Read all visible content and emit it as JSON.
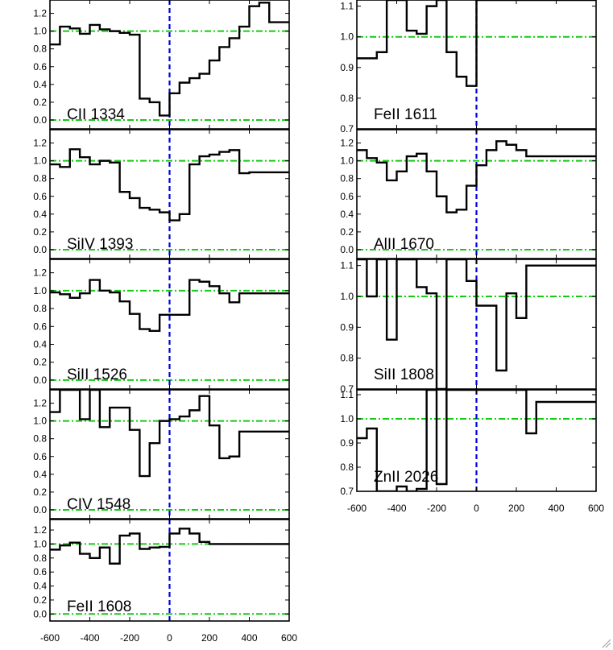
{
  "chart_data": {
    "type": "line",
    "style": "histogram step",
    "colors": {
      "spectrum": "#000000",
      "continuum": "#11cc11",
      "zero_velocity": "#0000dd",
      "frame": "#000000"
    },
    "x_axis": {
      "ticks": [
        "-600",
        "-400",
        "-200",
        "0",
        "200",
        "400",
        "600"
      ],
      "tick_values": [
        -600,
        -400,
        -200,
        0,
        200,
        400,
        600
      ],
      "xlim": [
        -600,
        600
      ]
    },
    "bin_edges": [
      -600,
      -550,
      -500,
      -450,
      -400,
      -350,
      -300,
      -250,
      -200,
      -150,
      -100,
      -50,
      0,
      50,
      100,
      150,
      200,
      250,
      300,
      350,
      400,
      450,
      500,
      550,
      600
    ],
    "panels": [
      {
        "label": "CII 1334",
        "ylim": [
          -0.1,
          1.35
        ],
        "yticks": [
          "0.0",
          "0.2",
          "0.4",
          "0.6",
          "0.8",
          "1.0",
          "1.2"
        ],
        "ytick_values": [
          0,
          0.2,
          0.4,
          0.6,
          0.8,
          1.0,
          1.2
        ],
        "continuum": [
          1.0,
          0.0
        ],
        "values": [
          0.85,
          1.05,
          1.03,
          0.97,
          1.07,
          1.02,
          1.0,
          0.98,
          0.96,
          0.24,
          0.2,
          0.05,
          0.3,
          0.42,
          0.47,
          0.52,
          0.67,
          0.82,
          0.92,
          1.05,
          1.28,
          1.32,
          1.1,
          1.1
        ]
      },
      {
        "label": "SiIV 1393",
        "ylim": [
          -0.1,
          1.35
        ],
        "yticks": [
          "0.0",
          "0.2",
          "0.4",
          "0.6",
          "0.8",
          "1.0",
          "1.2"
        ],
        "ytick_values": [
          0,
          0.2,
          0.4,
          0.6,
          0.8,
          1.0,
          1.2
        ],
        "continuum": [
          1.0,
          0.0
        ],
        "values": [
          0.96,
          0.93,
          1.13,
          1.04,
          0.96,
          1.0,
          0.98,
          0.65,
          0.58,
          0.47,
          0.45,
          0.42,
          0.33,
          0.4,
          0.96,
          1.05,
          1.07,
          1.1,
          1.12,
          0.86,
          0.87,
          0.87,
          0.87,
          0.87
        ]
      },
      {
        "label": "SiII 1526",
        "ylim": [
          -0.1,
          1.35
        ],
        "yticks": [
          "0.0",
          "0.2",
          "0.4",
          "0.6",
          "0.8",
          "1.0",
          "1.2"
        ],
        "ytick_values": [
          0,
          0.2,
          0.4,
          0.6,
          0.8,
          1.0,
          1.2
        ],
        "continuum": [
          1.0,
          0.0
        ],
        "values": [
          0.98,
          0.96,
          0.92,
          0.97,
          1.12,
          1.0,
          0.98,
          0.88,
          0.74,
          0.57,
          0.55,
          0.73,
          0.73,
          0.73,
          1.12,
          1.1,
          1.05,
          0.97,
          0.87,
          0.97,
          0.97,
          0.97,
          0.97,
          0.97
        ]
      },
      {
        "label": "CIV 1548",
        "ylim": [
          -0.1,
          1.35
        ],
        "yticks": [
          "0.0",
          "0.2",
          "0.4",
          "0.6",
          "0.8",
          "1.0",
          "1.2"
        ],
        "ytick_values": [
          0,
          0.2,
          0.4,
          0.6,
          0.8,
          1.0,
          1.2
        ],
        "continuum": [
          1.0,
          0.0
        ],
        "values": [
          1.1,
          1.35,
          1.35,
          1.02,
          1.35,
          0.93,
          1.15,
          1.15,
          0.9,
          0.38,
          0.75,
          1.0,
          1.02,
          1.05,
          1.12,
          1.28,
          0.95,
          0.58,
          0.6,
          0.88,
          0.88,
          0.88,
          0.88,
          0.88
        ]
      },
      {
        "label": "FeII 1608",
        "ylim": [
          -0.1,
          1.35
        ],
        "yticks": [
          "0.0",
          "0.2",
          "0.4",
          "0.6",
          "0.8",
          "1.0",
          "1.2"
        ],
        "ytick_values": [
          0,
          0.2,
          0.4,
          0.6,
          0.8,
          1.0,
          1.2
        ],
        "continuum": [
          1.0,
          0.0
        ],
        "values": [
          0.92,
          0.98,
          1.02,
          0.86,
          0.8,
          0.95,
          0.72,
          1.12,
          1.15,
          0.93,
          0.95,
          0.96,
          1.15,
          1.22,
          1.15,
          1.03,
          1.0,
          1.0,
          1.0,
          1.0,
          1.0,
          1.0,
          1.0,
          1.0
        ]
      },
      {
        "label": "FeII 1611",
        "ylim": [
          0.7,
          1.12
        ],
        "yticks": [
          "0.7",
          "0.8",
          "0.9",
          "1.0",
          "1.1"
        ],
        "ytick_values": [
          0.7,
          0.8,
          0.9,
          1.0,
          1.1
        ],
        "continuum": [
          1.0
        ],
        "values": [
          0.93,
          0.93,
          0.95,
          1.12,
          1.12,
          1.02,
          1.01,
          1.1,
          1.12,
          0.95,
          0.87,
          0.84,
          1.12,
          1.12,
          1.12,
          1.12,
          1.12,
          1.12,
          1.12,
          1.12,
          1.12,
          1.12,
          1.12,
          1.12
        ]
      },
      {
        "label": "AlII 1670",
        "ylim": [
          -0.1,
          1.35
        ],
        "yticks": [
          "0.0",
          "0.2",
          "0.4",
          "0.6",
          "0.8",
          "1.0",
          "1.2"
        ],
        "ytick_values": [
          0,
          0.2,
          0.4,
          0.6,
          0.8,
          1.0,
          1.2
        ],
        "continuum": [
          1.0,
          0.0
        ],
        "values": [
          1.12,
          1.03,
          0.98,
          0.78,
          0.88,
          1.05,
          1.08,
          0.88,
          0.6,
          0.42,
          0.45,
          0.72,
          0.95,
          1.12,
          1.22,
          1.18,
          1.12,
          1.05,
          1.05,
          1.05,
          1.05,
          1.05,
          1.05,
          1.05
        ]
      },
      {
        "label": "SiII 1808",
        "ylim": [
          0.7,
          1.12
        ],
        "yticks": [
          "0.7",
          "0.8",
          "0.9",
          "1.0",
          "1.1"
        ],
        "ytick_values": [
          0.7,
          0.8,
          0.9,
          1.0,
          1.1
        ],
        "continuum": [
          1.0
        ],
        "values": [
          1.12,
          1.0,
          1.12,
          0.86,
          1.12,
          1.12,
          1.03,
          1.01,
          0.7,
          1.12,
          1.12,
          1.05,
          0.97,
          0.97,
          0.76,
          1.01,
          0.93,
          1.1,
          1.1,
          1.1,
          1.1,
          1.1,
          1.1,
          1.1
        ]
      },
      {
        "label": "ZnII 2026",
        "ylim": [
          0.7,
          1.12
        ],
        "yticks": [
          "0.7",
          "0.8",
          "0.9",
          "1.0",
          "1.1"
        ],
        "ytick_values": [
          0.7,
          0.8,
          0.9,
          1.0,
          1.1
        ],
        "continuum": [
          1.0
        ],
        "values": [
          0.92,
          0.96,
          0.7,
          0.7,
          0.72,
          0.7,
          0.71,
          1.12,
          0.73,
          1.12,
          1.12,
          1.12,
          1.12,
          1.12,
          1.12,
          1.12,
          1.12,
          0.94,
          1.07,
          1.07,
          1.07,
          1.07,
          1.07,
          1.07
        ]
      }
    ]
  }
}
